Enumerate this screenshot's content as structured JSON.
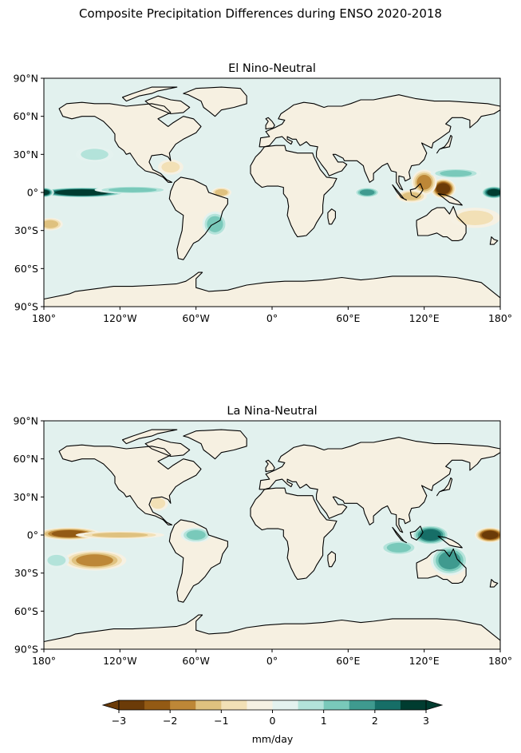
{
  "suptitle": "Composite Precipitation Differences during ENSO 2020-2018",
  "colors": {
    "levels": [
      "#6b3b08",
      "#935a14",
      "#bd8737",
      "#dfc17f",
      "#f2e0b6",
      "#f6f1e3",
      "#e4f2ef",
      "#b3e3da",
      "#79c9ba",
      "#3f9a8f",
      "#166e67",
      "#003c30"
    ],
    "ocean_neutral": "#e2f1ee",
    "land_neutral": "#f6f0e1",
    "coast": "#000000"
  },
  "chart_data": [
    {
      "type": "heatmap",
      "title": "El Nino-Neutral",
      "lat_ticks": [
        "90°N",
        "60°N",
        "30°N",
        "0°",
        "30°S",
        "60°S",
        "90°S"
      ],
      "lon_ticks": [
        "180°",
        "120°W",
        "60°W",
        "0°",
        "60°E",
        "120°E",
        "180°"
      ],
      "xlim": [
        -180,
        180
      ],
      "ylim": [
        -90,
        90
      ],
      "anomalies": [
        {
          "lon": -150,
          "lat": 0,
          "value": 3.2,
          "lon_span": 35,
          "lat_span": 4
        },
        {
          "lon": -180,
          "lat": 0,
          "value": 3.0,
          "lon_span": 8,
          "lat_span": 4
        },
        {
          "lon": 175,
          "lat": 0,
          "value": 3.0,
          "lon_span": 10,
          "lat_span": 5
        },
        {
          "lon": -110,
          "lat": 2,
          "value": 1.5,
          "lon_span": 30,
          "lat_span": 3
        },
        {
          "lon": 135,
          "lat": 3,
          "value": -2.8,
          "lon_span": 10,
          "lat_span": 8
        },
        {
          "lon": 120,
          "lat": 8,
          "value": -1.8,
          "lon_span": 10,
          "lat_span": 10
        },
        {
          "lon": 110,
          "lat": -3,
          "value": -1.2,
          "lon_span": 12,
          "lat_span": 5
        },
        {
          "lon": 75,
          "lat": 0,
          "value": 1.6,
          "lon_span": 10,
          "lat_span": 4
        },
        {
          "lon": 145,
          "lat": 15,
          "value": 1.2,
          "lon_span": 20,
          "lat_span": 4
        },
        {
          "lon": 160,
          "lat": -20,
          "value": -1.0,
          "lon_span": 20,
          "lat_span": 8
        },
        {
          "lon": -175,
          "lat": -25,
          "value": -1.2,
          "lon_span": 10,
          "lat_span": 5
        },
        {
          "lon": -45,
          "lat": -25,
          "value": 1.3,
          "lon_span": 10,
          "lat_span": 10
        },
        {
          "lon": -40,
          "lat": 0,
          "value": -1.2,
          "lon_span": 8,
          "lat_span": 4
        },
        {
          "lon": -80,
          "lat": 20,
          "value": -1.0,
          "lon_span": 10,
          "lat_span": 6
        },
        {
          "lon": -140,
          "lat": 30,
          "value": 1.0,
          "lon_span": 15,
          "lat_span": 6
        }
      ]
    },
    {
      "type": "heatmap",
      "title": "La Nina-Neutral",
      "lat_ticks": [
        "90°N",
        "60°N",
        "30°N",
        "0°",
        "30°S",
        "60°S",
        "90°S"
      ],
      "lon_ticks": [
        "180°",
        "120°W",
        "60°W",
        "0°",
        "60°E",
        "120°E",
        "180°"
      ],
      "xlim": [
        -180,
        180
      ],
      "ylim": [
        -90,
        90
      ],
      "anomalies": [
        {
          "lon": -160,
          "lat": 1,
          "value": -2.5,
          "lon_span": 25,
          "lat_span": 5
        },
        {
          "lon": -140,
          "lat": -20,
          "value": -2.0,
          "lon_span": 25,
          "lat_span": 8
        },
        {
          "lon": -120,
          "lat": 0,
          "value": -1.2,
          "lon_span": 35,
          "lat_span": 3
        },
        {
          "lon": 172,
          "lat": 0,
          "value": -2.8,
          "lon_span": 12,
          "lat_span": 6
        },
        {
          "lon": 125,
          "lat": 0,
          "value": 2.3,
          "lon_span": 15,
          "lat_span": 8
        },
        {
          "lon": 140,
          "lat": -20,
          "value": 1.6,
          "lon_span": 15,
          "lat_span": 12
        },
        {
          "lon": 100,
          "lat": -10,
          "value": 1.2,
          "lon_span": 15,
          "lat_span": 6
        },
        {
          "lon": -60,
          "lat": 0,
          "value": 1.2,
          "lon_span": 12,
          "lat_span": 6
        },
        {
          "lon": -170,
          "lat": -20,
          "value": 1.0,
          "lon_span": 10,
          "lat_span": 6
        },
        {
          "lon": -90,
          "lat": 25,
          "value": -1.0,
          "lon_span": 8,
          "lat_span": 6
        }
      ]
    }
  ],
  "colorbar": {
    "ticks": [
      "−3",
      "−2",
      "−1",
      "0",
      "1",
      "2",
      "3"
    ],
    "label": "mm/day"
  }
}
